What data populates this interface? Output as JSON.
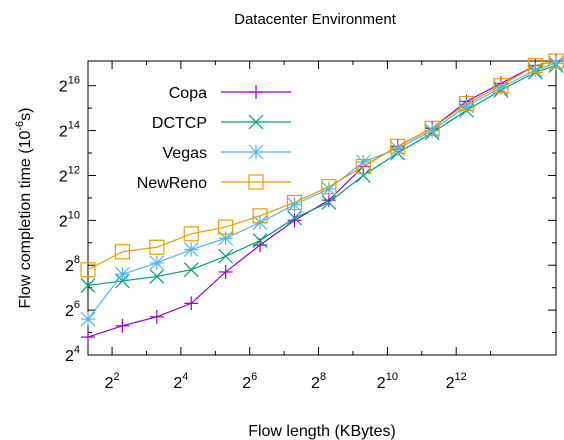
{
  "chart_data": {
    "type": "line",
    "title": "Datacenter Environment",
    "xlabel": "Flow length (KBytes)",
    "ylabel": "Flow completion time (10",
    "ylabel_sup": "-6",
    "ylabel_tail": "s)",
    "x_scale": "log2",
    "y_scale": "log2",
    "xlim_exp": [
      1.3,
      14.9
    ],
    "ylim_exp": [
      4,
      17.1
    ],
    "x_ticks": [
      {
        "base": "2",
        "exp": "2",
        "e": 2
      },
      {
        "base": "2",
        "exp": "4",
        "e": 4
      },
      {
        "base": "2",
        "exp": "6",
        "e": 6
      },
      {
        "base": "2",
        "exp": "8",
        "e": 8
      },
      {
        "base": "2",
        "exp": "10",
        "e": 10
      },
      {
        "base": "2",
        "exp": "12",
        "e": 12
      }
    ],
    "y_ticks": [
      {
        "base": "2",
        "exp": "4",
        "e": 4
      },
      {
        "base": "2",
        "exp": "6",
        "e": 6
      },
      {
        "base": "2",
        "exp": "8",
        "e": 8
      },
      {
        "base": "2",
        "exp": "10",
        "e": 10
      },
      {
        "base": "2",
        "exp": "12",
        "e": 12
      },
      {
        "base": "2",
        "exp": "14",
        "e": 14
      },
      {
        "base": "2",
        "exp": "16",
        "e": 16
      }
    ],
    "x_minor_ticks_exp": [
      3,
      5,
      7,
      9,
      11,
      13
    ],
    "y_minor_ticks_exp": [
      5,
      7,
      9,
      11,
      13,
      15
    ],
    "legend_position": "top-left",
    "series": [
      {
        "name": "Copa",
        "color": "#9400d3",
        "marker": "plus",
        "x_exp": [
          1.3,
          2.3,
          3.3,
          4.3,
          5.3,
          6.3,
          7.3,
          8.3,
          9.3,
          10.3,
          11.3,
          12.3,
          13.3,
          14.3,
          14.9
        ],
        "y_exp": [
          4.8,
          5.3,
          5.7,
          6.3,
          7.7,
          8.9,
          10,
          10.9,
          12.4,
          13.3,
          14.1,
          15.3,
          16.1,
          16.9,
          17.1
        ]
      },
      {
        "name": "DCTCP",
        "color": "#009e73",
        "marker": "x",
        "x_exp": [
          1.3,
          2.3,
          3.3,
          4.3,
          5.3,
          6.3,
          7.3,
          8.3,
          9.3,
          10.3,
          11.3,
          12.3,
          13.3,
          14.3,
          14.9
        ],
        "y_exp": [
          7.1,
          7.3,
          7.5,
          7.8,
          8.4,
          9.1,
          10.1,
          10.8,
          12,
          13,
          13.9,
          14.9,
          15.8,
          16.6,
          16.9
        ]
      },
      {
        "name": "Vegas",
        "color": "#56b4e9",
        "marker": "star",
        "x_exp": [
          1.3,
          2.3,
          3.3,
          4.3,
          5.3,
          6.3,
          7.3,
          8.3,
          9.3,
          10.3,
          11.3,
          12.3,
          13.3,
          14.3,
          14.9
        ],
        "y_exp": [
          5.6,
          7.6,
          8.1,
          8.7,
          9.2,
          9.9,
          10.7,
          11.4,
          12.6,
          13.2,
          14,
          15.1,
          15.9,
          16.7,
          17
        ]
      },
      {
        "name": "NewReno",
        "color": "#e69f00",
        "marker": "square",
        "x_exp": [
          1.3,
          2.3,
          3.3,
          4.3,
          5.3,
          6.3,
          7.3,
          8.3,
          9.3,
          10.3,
          11.3,
          12.3,
          13.3,
          14.3,
          14.9
        ],
        "y_exp": [
          7.8,
          8.6,
          8.8,
          9.4,
          9.7,
          10.2,
          10.8,
          11.5,
          12.4,
          13.3,
          14.1,
          15.2,
          16,
          16.9,
          17.1
        ]
      }
    ]
  }
}
